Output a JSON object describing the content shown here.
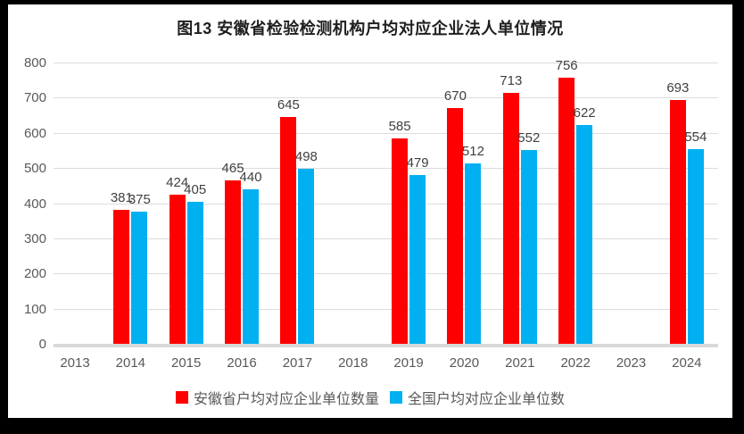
{
  "title": "图13 安徽省检验检测机构户均对应企业法人单位情况",
  "chart_data": {
    "type": "bar",
    "title": "图13 安徽省检验检测机构户均对应企业法人单位情况",
    "categories": [
      "2013",
      "2014",
      "2015",
      "2016",
      "2017",
      "2018",
      "2019",
      "2020",
      "2021",
      "2022",
      "2023",
      "2024"
    ],
    "series": [
      {
        "name": "安徽省户均对应企业单位数量",
        "color": "#ff0000",
        "values": [
          null,
          381,
          424,
          465,
          645,
          null,
          585,
          670,
          713,
          756,
          null,
          693
        ]
      },
      {
        "name": "全国户均对应企业单位数",
        "color": "#00b0f0",
        "values": [
          null,
          375,
          405,
          440,
          498,
          null,
          479,
          512,
          552,
          622,
          null,
          554
        ]
      }
    ],
    "xlabel": "",
    "ylabel": "",
    "ylim": [
      0,
      800
    ],
    "ytick_step": 100,
    "grid": true,
    "data_labels": true,
    "legend_position": "bottom",
    "colors": {
      "gridline": "#dcdcdc",
      "axis_line": "#d9d9d9",
      "tick_text": "#595959",
      "data_label_text": "#404040",
      "title_text": "#1f1f1f",
      "frame": "#000000",
      "background": "#ffffff"
    }
  }
}
